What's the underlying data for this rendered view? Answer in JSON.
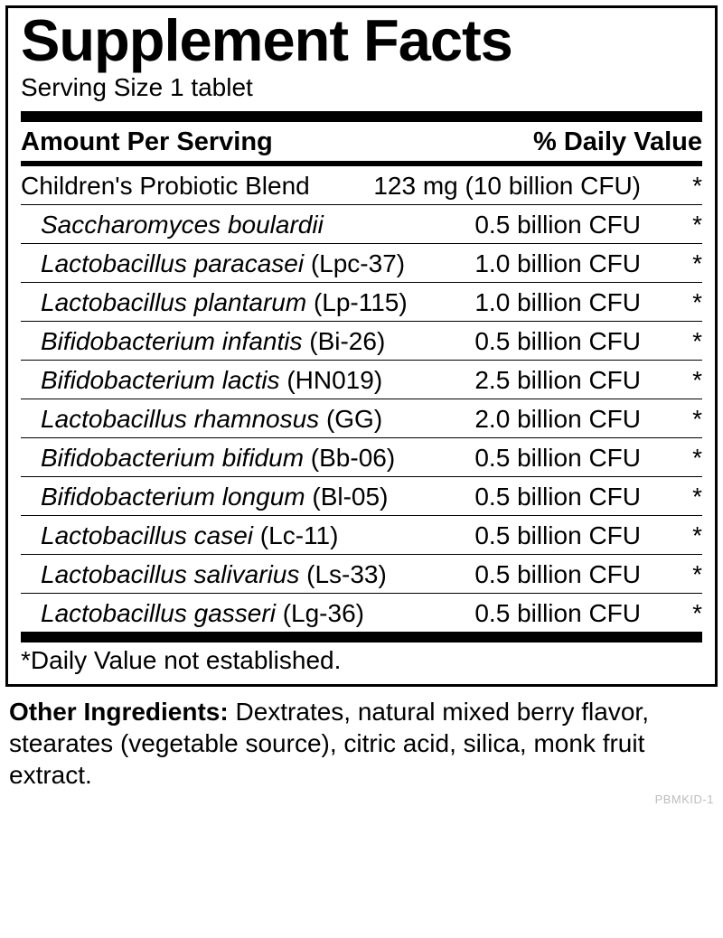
{
  "title": "Supplement Facts",
  "serving": "Serving Size 1 tablet",
  "header": {
    "left": "Amount Per Serving",
    "right": "% Daily Value"
  },
  "blend": {
    "name": "Children's Probiotic Blend",
    "amount": "123 mg (10 billion CFU)",
    "dv": "*"
  },
  "items": [
    {
      "species": "Saccharomyces boulardii",
      "strain": "",
      "amount": "0.5 billion CFU",
      "dv": "*"
    },
    {
      "species": "Lactobacillus paracasei",
      "strain": "(Lpc-37)",
      "amount": "1.0 billion CFU",
      "dv": "*"
    },
    {
      "species": "Lactobacillus plantarum",
      "strain": "(Lp-115)",
      "amount": "1.0 billion CFU",
      "dv": "*"
    },
    {
      "species": "Bifidobacterium infantis",
      "strain": "(Bi-26)",
      "amount": "0.5 billion CFU",
      "dv": "*"
    },
    {
      "species": "Bifidobacterium lactis",
      "strain": "(HN019)",
      "amount": "2.5 billion CFU",
      "dv": "*"
    },
    {
      "species": "Lactobacillus rhamnosus",
      "strain": "(GG)",
      "amount": "2.0 billion CFU",
      "dv": "*"
    },
    {
      "species": "Bifidobacterium bifidum",
      "strain": "(Bb-06)",
      "amount": "0.5 billion CFU",
      "dv": "*"
    },
    {
      "species": "Bifidobacterium longum",
      "strain": "(Bl-05)",
      "amount": "0.5 billion CFU",
      "dv": "*"
    },
    {
      "species": "Lactobacillus casei",
      "strain": "(Lc-11)",
      "amount": "0.5 billion CFU",
      "dv": "*"
    },
    {
      "species": "Lactobacillus salivarius",
      "strain": "(Ls-33)",
      "amount": "0.5 billion CFU",
      "dv": "*"
    },
    {
      "species": "Lactobacillus gasseri",
      "strain": "(Lg-36)",
      "amount": "0.5 billion CFU",
      "dv": "*"
    }
  ],
  "footnote": "*Daily Value not established.",
  "other": {
    "label": "Other Ingredients: ",
    "text": "Dextrates, natural mixed berry flavor, stearates (vegetable source), citric acid, silica, monk fruit extract."
  },
  "code": "PBMKID-1"
}
